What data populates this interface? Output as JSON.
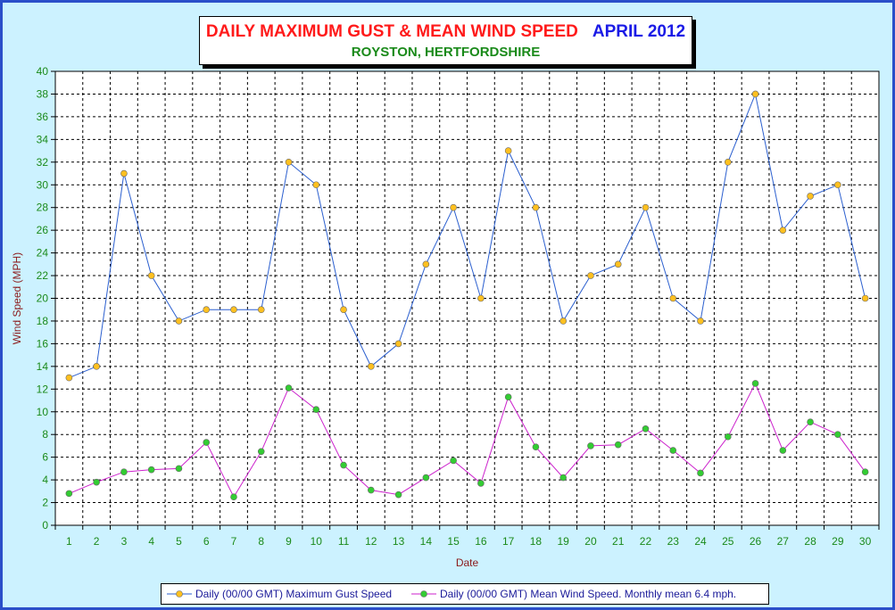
{
  "colors": {
    "border": "#2b4fc9",
    "background": "#ccf2ff",
    "axis_text": "#1a8a1a",
    "axis_title": "#8b1a1a",
    "gust_line": "#2b5fcf",
    "gust_marker": "#ffc020",
    "mean_line": "#cc22cc",
    "mean_marker": "#33cc33"
  },
  "chart_data": {
    "type": "line",
    "title": "DAILY MAXIMUM GUST & MEAN WIND SPEED",
    "title_date": "APRIL 2012",
    "subtitle": "ROYSTON, HERTFORDSHIRE",
    "xlabel": "Date",
    "ylabel": "Wind Speed (MPH)",
    "ylim": [
      0,
      40
    ],
    "ytick_step": 2,
    "grid": true,
    "legend_position": "bottom",
    "x": [
      "1",
      "2",
      "3",
      "4",
      "5",
      "6",
      "7",
      "8",
      "9",
      "10",
      "11",
      "12",
      "13",
      "14",
      "15",
      "16",
      "17",
      "18",
      "19",
      "20",
      "21",
      "22",
      "23",
      "24",
      "25",
      "26",
      "27",
      "28",
      "29",
      "30"
    ],
    "series": [
      {
        "name": "Daily (00/00 GMT) Maximum Gust Speed",
        "marker": "circle",
        "values": [
          13,
          14,
          31,
          22,
          18,
          19,
          19,
          19,
          32,
          30,
          19,
          14,
          16,
          23,
          28,
          20,
          33,
          28,
          18,
          22,
          23,
          28,
          20,
          18,
          32,
          38,
          26,
          29,
          30,
          20
        ]
      },
      {
        "name": "Daily (00/00 GMT) Mean Wind Speed. Monthly mean 6.4 mph.",
        "marker": "circle",
        "values": [
          2.8,
          3.8,
          4.7,
          4.9,
          5.0,
          7.3,
          2.5,
          6.5,
          12.1,
          10.2,
          5.3,
          3.1,
          2.7,
          4.2,
          5.7,
          3.7,
          11.3,
          6.9,
          4.2,
          7.0,
          7.1,
          8.5,
          6.6,
          4.6,
          7.8,
          12.5,
          6.6,
          9.1,
          8.0,
          4.7
        ]
      }
    ]
  }
}
